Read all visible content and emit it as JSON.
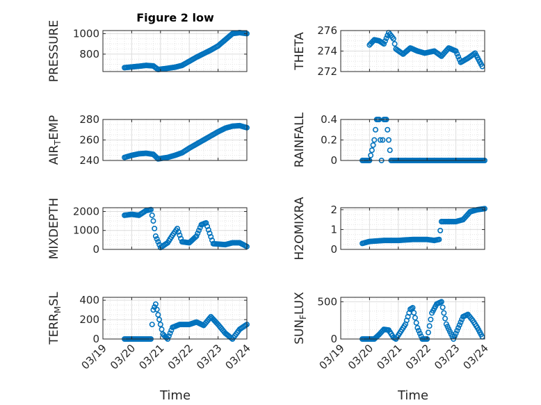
{
  "figure": {
    "title": "Figure 2 low",
    "xlabel": "Time",
    "xticks": [
      "03/19",
      "03/20",
      "03/21",
      "03/22",
      "03/23",
      "03/24"
    ],
    "marker_color": "#0072BD",
    "grid_color": "#d9d9d9",
    "axis_color": "#262626"
  },
  "chart_data": [
    {
      "type": "scatter",
      "ylabel": "PRESSURE",
      "ylim": [
        630,
        1030
      ],
      "yticks": [
        800,
        1000
      ],
      "ytick_labels": [
        "800",
        "1000"
      ],
      "x": [
        "03/19 18:00",
        "03/20 00:00",
        "03/20 06:00",
        "03/20 12:00",
        "03/20 18:00",
        "03/20 22:00",
        "03/21 06:00",
        "03/21 12:00",
        "03/21 18:00",
        "03/22 00:00",
        "03/22 06:00",
        "03/22 12:00",
        "03/22 18:00",
        "03/23 00:00",
        "03/23 06:00",
        "03/23 12:00",
        "03/23 18:00",
        "03/24 00:00"
      ],
      "y": [
        668,
        675,
        682,
        690,
        685,
        650,
        662,
        672,
        690,
        730,
        770,
        805,
        840,
        880,
        940,
        1000,
        1010,
        1000
      ]
    },
    {
      "type": "scatter",
      "ylabel": "THETA",
      "ylim": [
        272,
        276
      ],
      "yticks": [
        272,
        274,
        276
      ],
      "ytick_labels": [
        "272",
        "274",
        "276"
      ],
      "x": [
        "03/20 00:00",
        "03/20 04:00",
        "03/20 08:00",
        "03/20 12:00",
        "03/20 16:00",
        "03/20 20:00",
        "03/20 22:00",
        "03/21 04:00",
        "03/21 10:00",
        "03/21 16:00",
        "03/21 22:00",
        "03/22 06:00",
        "03/22 12:00",
        "03/22 18:00",
        "03/23 00:00",
        "03/23 04:00",
        "03/23 10:00",
        "03/23 16:00",
        "03/23 22:00"
      ],
      "y": [
        274.6,
        275.1,
        275.0,
        274.7,
        275.8,
        275.2,
        274.2,
        273.7,
        274.3,
        274.0,
        273.8,
        274.0,
        273.5,
        274.3,
        274.0,
        272.9,
        273.3,
        273.8,
        272.5
      ]
    },
    {
      "type": "scatter",
      "ylabel": "AIR_TEMP",
      "ylim": [
        240,
        280
      ],
      "yticks": [
        240,
        260,
        280
      ],
      "ytick_labels": [
        "240",
        "260",
        "280"
      ],
      "x": [
        "03/19 18:00",
        "03/20 00:00",
        "03/20 06:00",
        "03/20 12:00",
        "03/20 18:00",
        "03/20 22:00",
        "03/21 06:00",
        "03/21 12:00",
        "03/21 18:00",
        "03/22 00:00",
        "03/22 06:00",
        "03/22 12:00",
        "03/22 18:00",
        "03/23 00:00",
        "03/23 06:00",
        "03/23 12:00",
        "03/23 18:00",
        "03/24 00:00"
      ],
      "y": [
        243,
        245,
        246.5,
        247,
        246,
        241.5,
        243,
        245,
        247.5,
        252,
        256,
        260,
        264,
        268,
        271.5,
        273.5,
        274,
        272
      ]
    },
    {
      "type": "scatter",
      "ylabel": "RAINFALL",
      "ylim": [
        0,
        0.4
      ],
      "yticks": [
        0,
        0.2,
        0.4
      ],
      "ytick_labels": [
        "0",
        "0.2",
        "0.4"
      ],
      "x": [
        "03/19 18:00",
        "03/20 00:00",
        "03/20 04:00",
        "03/20 06:00",
        "03/20 08:00",
        "03/20 10:00",
        "03/20 12:00",
        "03/20 14:00",
        "03/20 16:00",
        "03/20 18:00",
        "03/20 20:00",
        "03/21 00:00",
        "03/21 12:00",
        "03/22 00:00",
        "03/22 12:00",
        "03/23 00:00",
        "03/23 12:00",
        "03/24 00:00"
      ],
      "y": [
        0,
        0,
        0.2,
        0.4,
        0.4,
        0,
        0.4,
        0.4,
        0.2,
        0,
        0,
        0,
        0,
        0,
        0,
        0,
        0,
        0
      ]
    },
    {
      "type": "scatter",
      "ylabel": "MIXDEPTH",
      "ylim": [
        0,
        2200
      ],
      "yticks": [
        0,
        1000,
        2000
      ],
      "ytick_labels": [
        "0",
        "1000",
        "2000"
      ],
      "x": [
        "03/19 18:00",
        "03/20 00:00",
        "03/20 06:00",
        "03/20 12:00",
        "03/20 16:00",
        "03/20 18:00",
        "03/20 20:00",
        "03/21 00:00",
        "03/21 06:00",
        "03/21 10:00",
        "03/21 14:00",
        "03/21 18:00",
        "03/22 00:00",
        "03/22 06:00",
        "03/22 10:00",
        "03/22 14:00",
        "03/22 20:00",
        "03/23 06:00",
        "03/23 12:00",
        "03/23 18:00",
        "03/24 00:00"
      ],
      "y": [
        1800,
        1850,
        1800,
        2050,
        2100,
        1500,
        700,
        100,
        350,
        750,
        1100,
        400,
        350,
        700,
        1300,
        1400,
        300,
        250,
        350,
        350,
        150
      ]
    },
    {
      "type": "scatter",
      "ylabel": "H2OMIXRA",
      "ylim": [
        0,
        2.1
      ],
      "yticks": [
        0,
        1,
        2
      ],
      "ytick_labels": [
        "0",
        "1",
        "2"
      ],
      "x": [
        "03/19 18:00",
        "03/20 00:00",
        "03/20 12:00",
        "03/21 00:00",
        "03/21 12:00",
        "03/22 00:00",
        "03/22 06:00",
        "03/22 10:00",
        "03/22 12:00",
        "03/22 18:00",
        "03/23 00:00",
        "03/23 06:00",
        "03/23 12:00",
        "03/23 18:00",
        "03/24 00:00"
      ],
      "y": [
        0.3,
        0.4,
        0.45,
        0.45,
        0.5,
        0.5,
        0.45,
        0.5,
        1.4,
        1.4,
        1.4,
        1.5,
        1.9,
        2.0,
        2.05
      ]
    },
    {
      "type": "scatter",
      "ylabel": "TERR_MSL",
      "ylim": [
        0,
        430
      ],
      "yticks": [
        0,
        200,
        400
      ],
      "ytick_labels": [
        "0",
        "200",
        "400"
      ],
      "x": [
        "03/19 18:00",
        "03/20 06:00",
        "03/20 16:00",
        "03/20 18:00",
        "03/20 20:00",
        "03/20 22:00",
        "03/21 02:00",
        "03/21 06:00",
        "03/21 10:00",
        "03/21 16:00",
        "03/22 00:00",
        "03/22 06:00",
        "03/22 12:00",
        "03/22 18:00",
        "03/23 00:00",
        "03/23 06:00",
        "03/23 12:00",
        "03/23 18:00",
        "03/24 00:00"
      ],
      "y": [
        0,
        0,
        0,
        300,
        360,
        250,
        50,
        0,
        120,
        150,
        150,
        175,
        140,
        230,
        150,
        60,
        0,
        100,
        150
      ]
    },
    {
      "type": "scatter",
      "ylabel": "SUN_FLUX",
      "ylim": [
        0,
        560
      ],
      "yticks": [
        0,
        500
      ],
      "ytick_labels": [
        "0",
        "500"
      ],
      "x": [
        "03/19 18:00",
        "03/20 04:00",
        "03/20 08:00",
        "03/20 12:00",
        "03/20 16:00",
        "03/20 20:00",
        "03/20 22:00",
        "03/21 06:00",
        "03/21 10:00",
        "03/21 12:00",
        "03/21 16:00",
        "03/21 20:00",
        "03/22 00:00",
        "03/22 04:00",
        "03/22 08:00",
        "03/22 12:00",
        "03/22 16:00",
        "03/22 22:00",
        "03/23 06:00",
        "03/23 10:00",
        "03/23 14:00",
        "03/23 18:00",
        "03/23 22:00"
      ],
      "y": [
        0,
        0,
        60,
        130,
        120,
        20,
        0,
        200,
        400,
        420,
        150,
        0,
        0,
        350,
        470,
        500,
        200,
        0,
        300,
        330,
        250,
        150,
        30
      ]
    }
  ]
}
